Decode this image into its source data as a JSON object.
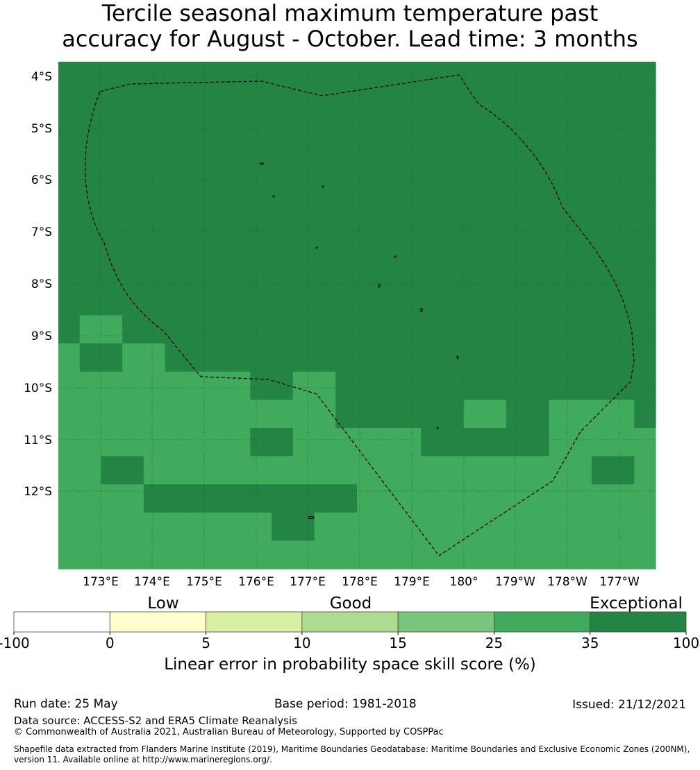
{
  "title_line1": "Tercile seasonal maximum temperature past",
  "title_line2": "accuracy for August - October. Lead time: 3 months",
  "map": {
    "lon_labels": [
      "173°E",
      "174°E",
      "175°E",
      "176°E",
      "177°E",
      "178°E",
      "179°E",
      "180°",
      "179°W",
      "178°W",
      "177°W"
    ],
    "lat_labels": [
      "4°S",
      "5°S",
      "6°S",
      "7°S",
      "8°S",
      "9°S",
      "10°S",
      "11°S",
      "12°S"
    ],
    "colors": {
      "exceptional": "#238443",
      "very_good": "#41ab5d",
      "grid": "#1a6b33",
      "boundary": "#000000"
    },
    "grid_rows": [
      "DDDDDDDDDDDDDDDDDDDDDDDDDDDD",
      "DDDDDDDDDDDDDDDDDDDDDDDDDDDD",
      "DDDDDDDDDDDDDDDDDDDDDDDDDDDD",
      "DDDDDDDDDDDDDDDDDDDDDDDDDDDD",
      "DDDDDDDDDDDDDDDDDDDDDDDDDDDD",
      "DDDDDDDDDDDDDDDDDDDDDDDDDDDD",
      "DDDDDDDDDDDDDDDDDDDDDDDDDDDD",
      "DDDDDDDDDDDDDDDDDDDDDDDDDDDD",
      "DDDDDDDDDDDDDDDDDDDDDDDDDDDD",
      "DLLDDDDDDDDDDDDDDDDDDDDDDDDD",
      "LDDLLDDDDDDDDDDDDDDDDDDDDDDD",
      "LLLLLLLLLDDLLDDDDDDDDDDDDDDD",
      "LLLLLLLLLLLLLDDDDDDLLDDLLLLD",
      "LLLLLLLLLDDLLLLLLDDDDDDLLLLL",
      "LLDDLLLLLLLLLLLLLLLLLLLLLDDL",
      "LLLLDDDDDDDDDDLLLLLLLLLLLLLL",
      "LLLLLLLLLLDDLLLLLLLLLLLLLLLL",
      "LLLLLLLLLLLLLLLLLLLLLLLLLLLL"
    ]
  },
  "colorbar": {
    "category_labels": [
      "Low",
      "Good",
      "Exceptional"
    ],
    "bins": [
      {
        "color": "#ffffff"
      },
      {
        "color": "#ffffcc"
      },
      {
        "color": "#d9f0a3"
      },
      {
        "color": "#addd8e"
      },
      {
        "color": "#78c679"
      },
      {
        "color": "#41ab5d"
      },
      {
        "color": "#238443"
      }
    ],
    "tick_labels": [
      "-100",
      "0",
      "5",
      "10",
      "15",
      "25",
      "35",
      "100"
    ],
    "label": "Linear error in probability space skill score (%)"
  },
  "footer": {
    "run_date": "Run date: 25 May",
    "base_period": "Base period: 1981-2018",
    "issued": "Issued: 21/12/2021",
    "data_source": "Data source: ACCESS-S2 and ERA5 Climate Reanalysis",
    "copyright": "© Commonwealth of Australia 2021, Australian Bureau of Meteorology, Supported by COSPPac",
    "shapefile": "Shapefile data extracted from Flanders Marine Institute (2019), Maritime Boundaries Geodatabase: Maritime Boundaries and Exclusive Economic Zones (200NM), version 11. Available online at http://www.marineregions.org/."
  }
}
